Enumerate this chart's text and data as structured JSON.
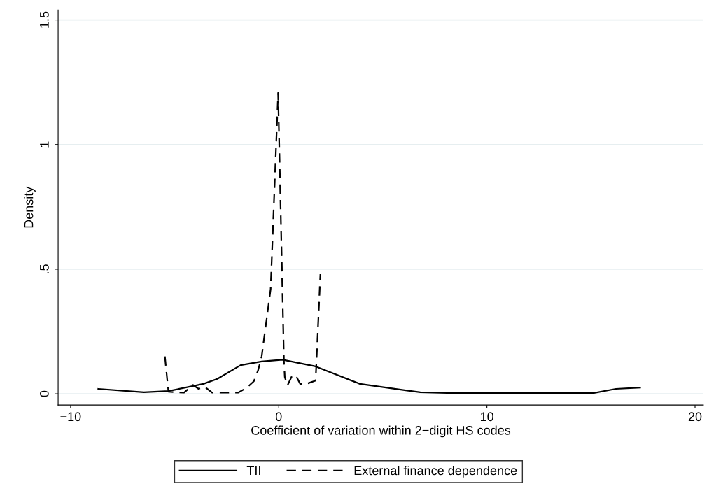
{
  "chart_data": {
    "type": "line",
    "xlabel": "Coefficient of variation within 2−digit HS codes",
    "ylabel": "Density",
    "xlim": [
      -10.6,
      20.4
    ],
    "ylim": [
      -0.045,
      1.54
    ],
    "xticks": [
      {
        "value": -10,
        "label": "−10"
      },
      0,
      10,
      20
    ],
    "yticks": [
      0,
      {
        "value": 0.5,
        "label": ".5"
      },
      1,
      1.5
    ],
    "grid": "y",
    "legend": "bottom",
    "marker": "none",
    "series": [
      {
        "name": "TII",
        "color": "#000000",
        "line_style": "solid",
        "x": [
          -8.67,
          -6.48,
          -5.3,
          -3.62,
          -2.95,
          -1.83,
          -0.82,
          0.18,
          1.77,
          3.9,
          6.1,
          6.8,
          8.4,
          10,
          12,
          15.1,
          16.2,
          17.36
        ],
        "values": [
          0.02,
          0.006,
          0.011,
          0.04,
          0.06,
          0.115,
          0.13,
          0.137,
          0.11,
          0.04,
          0.014,
          0.006,
          0.003,
          0.003,
          0.003,
          0.003,
          0.02,
          0.025
        ]
      },
      {
        "name": "External finance dependence",
        "color": "#000000",
        "line_style": "dashed",
        "x": [
          -5.47,
          -5.3,
          -4.55,
          -4.12,
          -3.85,
          -3.55,
          -3.2,
          -1.94,
          -1.53,
          -1.2,
          -0.99,
          -0.82,
          -0.39,
          -0.03,
          0.25,
          0.29,
          0.42,
          0.66,
          0.86,
          1.03,
          1.33,
          1.77,
          2.0
        ],
        "values": [
          0.15,
          0.008,
          0.005,
          0.036,
          0.02,
          0.028,
          0.005,
          0.005,
          0.025,
          0.05,
          0.095,
          0.15,
          0.42,
          1.207,
          0.13,
          0.067,
          0.034,
          0.076,
          0.067,
          0.04,
          0.04,
          0.053,
          0.48
        ]
      }
    ]
  }
}
